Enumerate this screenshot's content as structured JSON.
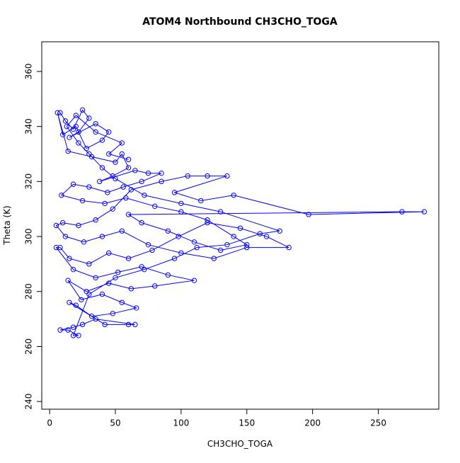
{
  "chart_data": {
    "type": "line",
    "title": "ATOM4 Northbound CH3CHO_TOGA",
    "x_label": "CH3CHO_TOGA",
    "y_label": "Theta (K)",
    "color": "#0000ff",
    "markers": true,
    "x": [
      8,
      12,
      18,
      25,
      30,
      22,
      15,
      35,
      45,
      40,
      28,
      20,
      10,
      6,
      14,
      32,
      50,
      55,
      60,
      48,
      38,
      65,
      75,
      85,
      70,
      56,
      44,
      30,
      18,
      9,
      25,
      42,
      58,
      80,
      100,
      120,
      140,
      150,
      130,
      110,
      90,
      70,
      60,
      268,
      285,
      197,
      140,
      115,
      95,
      135,
      120,
      105,
      85,
      62,
      48,
      35,
      22,
      10,
      5,
      12,
      26,
      40,
      55,
      75,
      100,
      125,
      150,
      182,
      165,
      145,
      120,
      98,
      78,
      60,
      45,
      30,
      15,
      8,
      5,
      18,
      35,
      52,
      70,
      90,
      110,
      80,
      62,
      45,
      28,
      14,
      24,
      40,
      55,
      66,
      48,
      32,
      20,
      15,
      42,
      60,
      65,
      35,
      25,
      18,
      8,
      14,
      22,
      18,
      30,
      50,
      72,
      95,
      112,
      135,
      160,
      175,
      130,
      100,
      72,
      50,
      40,
      30,
      22,
      13,
      20,
      35,
      55,
      45,
      60
    ],
    "values": [
      345,
      342,
      339,
      346,
      343,
      338,
      336,
      341,
      338,
      335,
      332,
      340,
      337,
      345,
      331,
      329,
      327,
      330,
      325,
      322,
      320,
      324,
      323,
      323,
      320,
      318,
      316,
      318,
      319,
      315,
      313,
      312,
      314,
      311,
      309,
      306,
      300,
      297,
      295,
      298,
      302,
      305,
      308,
      309,
      309,
      308,
      315,
      313,
      316,
      322,
      322,
      322,
      320,
      317,
      310,
      306,
      304,
      305,
      304,
      300,
      298,
      300,
      302,
      297,
      294,
      292,
      296,
      296,
      300,
      303,
      305,
      300,
      295,
      292,
      294,
      290,
      292,
      296,
      296,
      288,
      285,
      287,
      289,
      286,
      284,
      282,
      281,
      283,
      280,
      284,
      277,
      279,
      276,
      274,
      272,
      271,
      275,
      276,
      268,
      268,
      268,
      270,
      268,
      267,
      266,
      266,
      264,
      264,
      279,
      285,
      288,
      292,
      296,
      297,
      301,
      302,
      309,
      312,
      315,
      321,
      325,
      330,
      334,
      340,
      344,
      338,
      334,
      330,
      328
    ],
    "xlim": [
      -6,
      296
    ],
    "ylim": [
      237.2,
      370.8
    ],
    "xticks": [
      0,
      50,
      100,
      150,
      200,
      250
    ],
    "yticks": [
      240,
      260,
      280,
      300,
      320,
      340,
      360
    ]
  }
}
